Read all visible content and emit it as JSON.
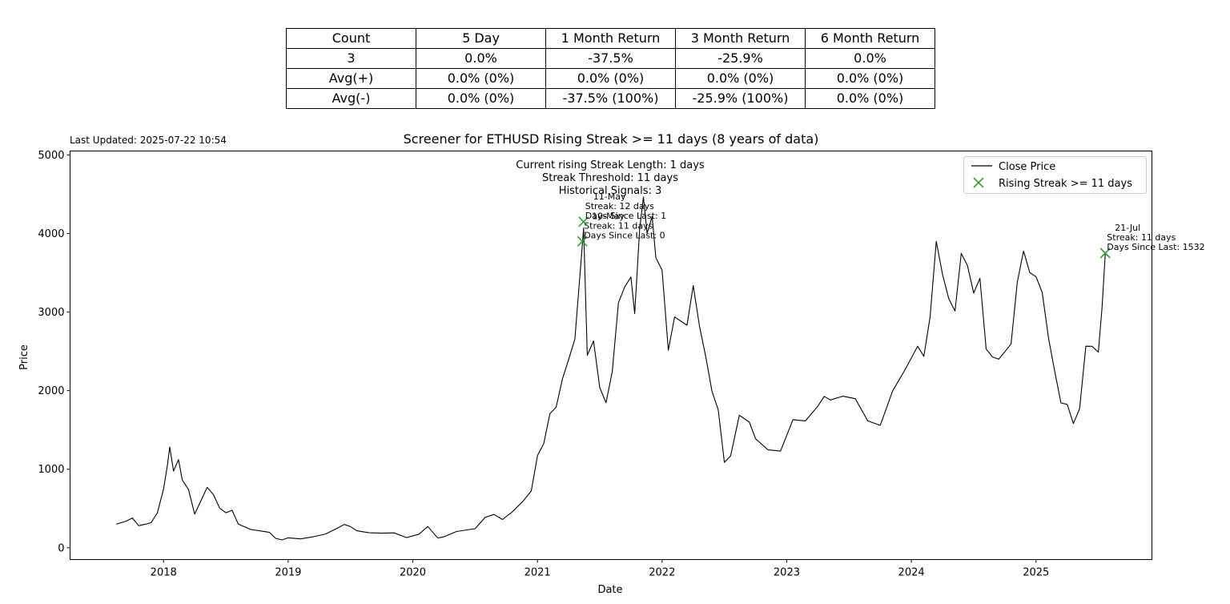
{
  "table": {
    "header": [
      "Count",
      "5 Day",
      "1 Month Return",
      "3 Month Return",
      "6 Month Return"
    ],
    "rows": [
      [
        "3",
        "0.0%",
        "-37.5%",
        "-25.9%",
        "0.0%"
      ],
      [
        "Avg(+)",
        "0.0% (0%)",
        "0.0% (0%)",
        "0.0% (0%)",
        "0.0% (0%)"
      ],
      [
        "Avg(-)",
        "0.0% (0%)",
        "-37.5% (100%)",
        "-25.9% (100%)",
        "0.0% (0%)"
      ]
    ]
  },
  "last_updated": "Last Updated: 2025-07-22 10:54",
  "chart_data": {
    "type": "line",
    "title": "Screener for ETHUSD Rising Streak >= 11 days (8 years of data)",
    "xlabel": "Date",
    "ylabel": "Price",
    "xlim": [
      2017.25,
      2025.93
    ],
    "ylim": [
      -150,
      5050
    ],
    "x_ticks": [
      2018,
      2019,
      2020,
      2021,
      2022,
      2023,
      2024,
      2025
    ],
    "y_ticks": [
      0,
      1000,
      2000,
      3000,
      4000,
      5000
    ],
    "info_lines": [
      "Current rising Streak Length: 1 days",
      "Streak Threshold: 11 days",
      "Historical Signals: 3"
    ],
    "legend": {
      "position": "top-right",
      "line_label": "Close Price",
      "marker_label": "Rising Streak >= 11 days"
    },
    "colors": {
      "line": "#000000",
      "marker": "#3a9a3a"
    },
    "series": [
      {
        "name": "Close Price",
        "points": [
          [
            2017.62,
            300
          ],
          [
            2017.7,
            330
          ],
          [
            2017.75,
            390
          ],
          [
            2017.8,
            280
          ],
          [
            2017.85,
            300
          ],
          [
            2017.9,
            320
          ],
          [
            2017.95,
            440
          ],
          [
            2018.0,
            760
          ],
          [
            2018.03,
            1050
          ],
          [
            2018.05,
            1280
          ],
          [
            2018.08,
            950
          ],
          [
            2018.12,
            1100
          ],
          [
            2018.15,
            880
          ],
          [
            2018.2,
            720
          ],
          [
            2018.25,
            420
          ],
          [
            2018.3,
            600
          ],
          [
            2018.35,
            750
          ],
          [
            2018.4,
            680
          ],
          [
            2018.45,
            500
          ],
          [
            2018.5,
            450
          ],
          [
            2018.55,
            470
          ],
          [
            2018.6,
            300
          ],
          [
            2018.7,
            230
          ],
          [
            2018.8,
            210
          ],
          [
            2018.85,
            200
          ],
          [
            2018.9,
            120
          ],
          [
            2018.95,
            100
          ],
          [
            2019.0,
            130
          ],
          [
            2019.1,
            115
          ],
          [
            2019.2,
            140
          ],
          [
            2019.3,
            170
          ],
          [
            2019.4,
            250
          ],
          [
            2019.45,
            300
          ],
          [
            2019.5,
            270
          ],
          [
            2019.55,
            220
          ],
          [
            2019.65,
            190
          ],
          [
            2019.75,
            180
          ],
          [
            2019.85,
            185
          ],
          [
            2019.95,
            130
          ],
          [
            2020.05,
            170
          ],
          [
            2020.12,
            270
          ],
          [
            2020.2,
            120
          ],
          [
            2020.25,
            140
          ],
          [
            2020.35,
            210
          ],
          [
            2020.5,
            240
          ],
          [
            2020.58,
            380
          ],
          [
            2020.65,
            430
          ],
          [
            2020.72,
            360
          ],
          [
            2020.8,
            470
          ],
          [
            2020.88,
            600
          ],
          [
            2020.95,
            730
          ],
          [
            2021.0,
            1200
          ],
          [
            2021.05,
            1300
          ],
          [
            2021.1,
            1700
          ],
          [
            2021.15,
            1800
          ],
          [
            2021.2,
            2100
          ],
          [
            2021.25,
            2400
          ],
          [
            2021.3,
            2700
          ],
          [
            2021.36,
            3900
          ],
          [
            2021.37,
            4150
          ],
          [
            2021.4,
            2500
          ],
          [
            2021.45,
            2700
          ],
          [
            2021.5,
            2000
          ],
          [
            2021.55,
            1900
          ],
          [
            2021.6,
            2300
          ],
          [
            2021.65,
            3200
          ],
          [
            2021.7,
            3300
          ],
          [
            2021.75,
            3500
          ],
          [
            2021.78,
            3000
          ],
          [
            2021.82,
            4100
          ],
          [
            2021.85,
            4500
          ],
          [
            2021.88,
            4000
          ],
          [
            2021.92,
            4300
          ],
          [
            2021.95,
            3800
          ],
          [
            2022.0,
            3600
          ],
          [
            2022.05,
            2500
          ],
          [
            2022.1,
            3000
          ],
          [
            2022.2,
            2800
          ],
          [
            2022.25,
            3400
          ],
          [
            2022.3,
            2900
          ],
          [
            2022.35,
            2400
          ],
          [
            2022.4,
            2000
          ],
          [
            2022.45,
            1800
          ],
          [
            2022.5,
            1100
          ],
          [
            2022.55,
            1200
          ],
          [
            2022.62,
            1700
          ],
          [
            2022.7,
            1600
          ],
          [
            2022.75,
            1400
          ],
          [
            2022.85,
            1250
          ],
          [
            2022.95,
            1200
          ],
          [
            2023.05,
            1600
          ],
          [
            2023.15,
            1650
          ],
          [
            2023.25,
            1800
          ],
          [
            2023.3,
            1900
          ],
          [
            2023.35,
            1850
          ],
          [
            2023.45,
            1900
          ],
          [
            2023.55,
            1850
          ],
          [
            2023.65,
            1650
          ],
          [
            2023.75,
            1600
          ],
          [
            2023.85,
            2000
          ],
          [
            2023.95,
            2300
          ],
          [
            2024.05,
            2500
          ],
          [
            2024.1,
            2500
          ],
          [
            2024.15,
            3000
          ],
          [
            2024.2,
            3900
          ],
          [
            2024.25,
            3400
          ],
          [
            2024.3,
            3200
          ],
          [
            2024.35,
            3000
          ],
          [
            2024.4,
            3700
          ],
          [
            2024.45,
            3500
          ],
          [
            2024.5,
            3300
          ],
          [
            2024.55,
            3400
          ],
          [
            2024.6,
            2600
          ],
          [
            2024.65,
            2500
          ],
          [
            2024.7,
            2400
          ],
          [
            2024.75,
            2500
          ],
          [
            2024.8,
            2600
          ],
          [
            2024.85,
            3300
          ],
          [
            2024.9,
            3800
          ],
          [
            2024.95,
            3400
          ],
          [
            2025.0,
            3500
          ],
          [
            2025.05,
            3200
          ],
          [
            2025.1,
            2600
          ],
          [
            2025.15,
            2300
          ],
          [
            2025.2,
            1900
          ],
          [
            2025.25,
            1800
          ],
          [
            2025.3,
            1600
          ],
          [
            2025.35,
            1800
          ],
          [
            2025.4,
            2500
          ],
          [
            2025.45,
            2600
          ],
          [
            2025.5,
            2500
          ],
          [
            2025.53,
            3000
          ],
          [
            2025.556,
            3750
          ]
        ]
      }
    ],
    "signals": [
      {
        "x": 2021.36,
        "y": 3900,
        "annotation": [
          "10-May",
          "Streak: 11 days",
          "Days Since Last: 0"
        ]
      },
      {
        "x": 2021.37,
        "y": 4150,
        "annotation": [
          "11-May",
          "Streak: 12 days",
          "Days Since Last: 1"
        ]
      },
      {
        "x": 2025.556,
        "y": 3750,
        "annotation": [
          "21-Jul",
          "Streak: 11 days",
          "Days Since Last: 1532"
        ]
      }
    ]
  }
}
